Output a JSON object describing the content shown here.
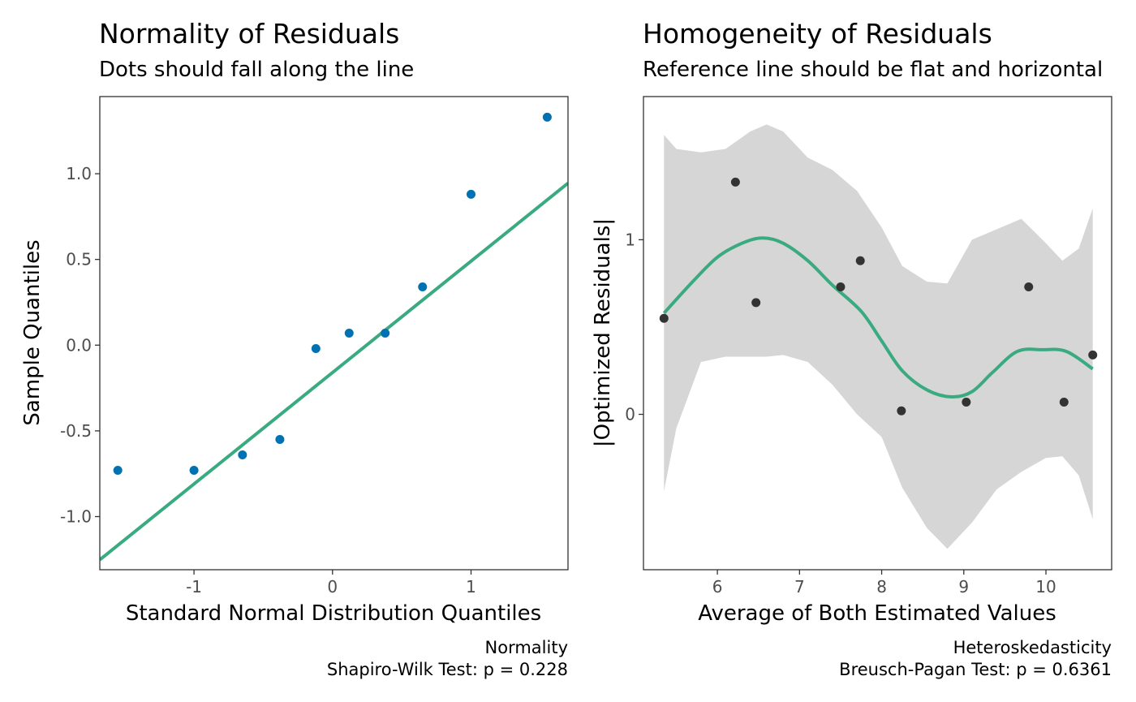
{
  "left_panel": {
    "title": "Normality of Residuals",
    "subtitle": "Dots should fall along the line",
    "caption_line1": "Normality",
    "caption_line2": "Shapiro-Wilk Test: p = 0.228"
  },
  "right_panel": {
    "title": "Homogeneity of Residuals",
    "subtitle": "Reference line should be flat and horizontal",
    "caption_line1": "Heteroskedasticity",
    "caption_line2": "Breusch-Pagan Test: p = 0.6361"
  },
  "colors": {
    "qq_points": "#0072B2",
    "reference_line": "#3AAA80",
    "scatter_points": "#333333",
    "ribbon": "#D6D6D6",
    "panel_border": "#333333"
  },
  "chart_data": [
    {
      "type": "scatter",
      "title": "Normality of Residuals",
      "subtitle": "Dots should fall along the line",
      "xlabel": "Standard Normal Distribution Quantiles",
      "ylabel": "Sample Quantiles",
      "xlim": [
        -1.68,
        1.7
      ],
      "ylim": [
        -1.31,
        1.45
      ],
      "xticks": [
        -1,
        0,
        1
      ],
      "xtick_labels": [
        "-1",
        "0",
        "1"
      ],
      "yticks": [
        -1.0,
        -0.5,
        0.0,
        0.5,
        1.0
      ],
      "ytick_labels": [
        "-1.0",
        "-0.5",
        "0.0",
        "0.5",
        "1.0"
      ],
      "grid": false,
      "points": [
        {
          "x": -1.55,
          "y": -0.73
        },
        {
          "x": -1.0,
          "y": -0.73
        },
        {
          "x": -0.65,
          "y": -0.64
        },
        {
          "x": -0.38,
          "y": -0.55
        },
        {
          "x": -0.12,
          "y": -0.02
        },
        {
          "x": 0.12,
          "y": 0.07
        },
        {
          "x": 0.38,
          "y": 0.07
        },
        {
          "x": 0.65,
          "y": 0.34
        },
        {
          "x": 1.0,
          "y": 0.88
        },
        {
          "x": 1.55,
          "y": 1.33
        }
      ],
      "reference_line": {
        "intercept": -0.16,
        "slope": 0.65
      }
    },
    {
      "type": "scatter",
      "title": "Homogeneity of Residuals",
      "subtitle": "Reference line should be flat and horizontal",
      "xlabel": "Average of Both Estimated Values",
      "ylabel": "|Optimized Residuals|",
      "xlim": [
        5.1,
        10.8
      ],
      "ylim": [
        -0.89,
        1.82
      ],
      "xticks": [
        6,
        7,
        8,
        9,
        10
      ],
      "xtick_labels": [
        "6",
        "7",
        "8",
        "9",
        "10"
      ],
      "yticks": [
        0,
        1
      ],
      "ytick_labels": [
        "0",
        "1"
      ],
      "grid": false,
      "points": [
        {
          "x": 5.35,
          "y": 0.55
        },
        {
          "x": 6.22,
          "y": 1.33
        },
        {
          "x": 6.47,
          "y": 0.64
        },
        {
          "x": 7.5,
          "y": 0.73
        },
        {
          "x": 7.74,
          "y": 0.88
        },
        {
          "x": 8.24,
          "y": 0.02
        },
        {
          "x": 9.03,
          "y": 0.07
        },
        {
          "x": 9.79,
          "y": 0.73
        },
        {
          "x": 10.22,
          "y": 0.07
        },
        {
          "x": 10.57,
          "y": 0.34
        }
      ],
      "smooth_line": {
        "x": [
          5.35,
          5.7,
          6.0,
          6.3,
          6.55,
          6.8,
          7.1,
          7.4,
          7.75,
          8.0,
          8.25,
          8.55,
          8.85,
          9.1,
          9.35,
          9.65,
          9.95,
          10.25,
          10.57
        ],
        "y": [
          0.58,
          0.76,
          0.9,
          0.98,
          1.01,
          0.98,
          0.88,
          0.74,
          0.59,
          0.42,
          0.25,
          0.14,
          0.1,
          0.13,
          0.24,
          0.36,
          0.37,
          0.36,
          0.26
        ]
      },
      "ribbon": {
        "x": [
          5.35,
          5.5,
          5.8,
          6.1,
          6.4,
          6.6,
          6.8,
          7.1,
          7.4,
          7.7,
          8.0,
          8.25,
          8.55,
          8.8,
          9.1,
          9.4,
          9.7,
          10.0,
          10.2,
          10.4,
          10.57
        ],
        "upper": [
          1.6,
          1.52,
          1.5,
          1.52,
          1.62,
          1.66,
          1.62,
          1.47,
          1.4,
          1.28,
          1.07,
          0.85,
          0.76,
          0.75,
          1.0,
          1.06,
          1.12,
          0.98,
          0.88,
          0.95,
          1.18
        ],
        "lower": [
          -0.44,
          -0.08,
          0.3,
          0.33,
          0.33,
          0.33,
          0.34,
          0.3,
          0.17,
          0.0,
          -0.13,
          -0.42,
          -0.65,
          -0.77,
          -0.62,
          -0.43,
          -0.33,
          -0.25,
          -0.24,
          -0.35,
          -0.6
        ]
      }
    }
  ]
}
